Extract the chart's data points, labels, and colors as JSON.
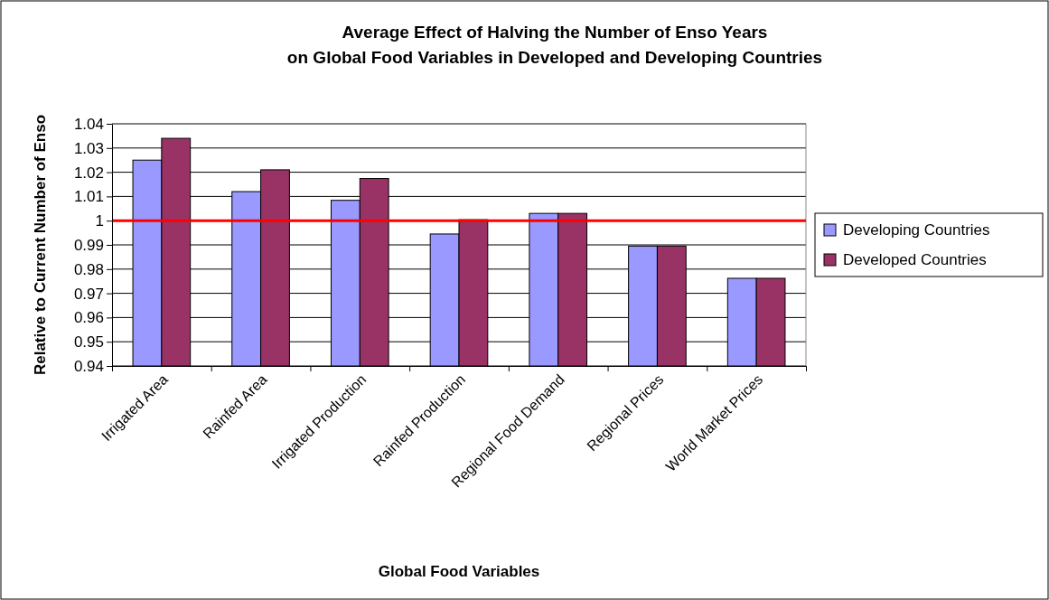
{
  "chart_data": {
    "type": "bar",
    "title": "Average Effect of Halving the Number of Enso Years\non Global Food Variables in Developed and Developing Countries",
    "xlabel": "Global Food Variables",
    "ylabel": "Relative to Current Number of Enso",
    "categories": [
      "Irrigated Area",
      "Rainfed Area",
      "Irrigated Production",
      "Rainfed Production",
      "Regional Food Demand",
      "Regional Prices",
      "World Market Prices"
    ],
    "series": [
      {
        "name": "Developing Countries",
        "color": "#9999ff",
        "values": [
          1.025,
          1.012,
          1.0084,
          0.9945,
          1.003,
          0.9895,
          0.9762
        ]
      },
      {
        "name": "Developed Countries",
        "color": "#993366",
        "values": [
          1.034,
          1.021,
          1.0174,
          1.0004,
          1.003,
          0.9895,
          0.9762
        ]
      }
    ],
    "ylim": [
      0.94,
      1.04
    ],
    "yticks": [
      0.94,
      0.95,
      0.96,
      0.97,
      0.98,
      0.99,
      1,
      1.01,
      1.02,
      1.03,
      1.04
    ],
    "grid": "y",
    "legend": "right",
    "ref_lines": [
      {
        "axis": "y",
        "value": 1,
        "color": "#ff0000"
      }
    ]
  }
}
